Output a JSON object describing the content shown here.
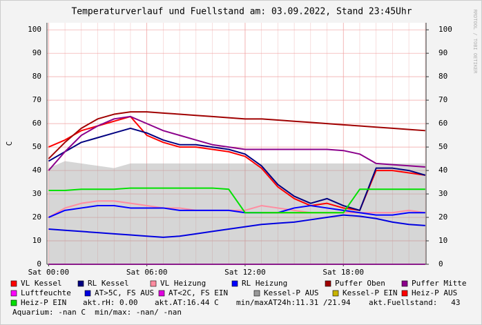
{
  "chart_data": {
    "type": "line",
    "title": "Temperaturverlauf und Fuellstand am: 03.09.2022, Stand 23:45Uhr",
    "y_label": "C",
    "side_label": "RRDTOOL / TOBI OETIKER",
    "x": [
      0,
      1,
      2,
      3,
      4,
      5,
      6,
      7,
      8,
      9,
      10,
      11,
      12,
      13,
      14,
      15,
      16,
      17,
      18,
      19,
      20,
      21,
      22,
      23
    ],
    "xlim": [
      -0.1,
      23.05
    ],
    "xticks": [
      {
        "value": 0,
        "label": "Sat 00:00"
      },
      {
        "value": 6,
        "label": "Sat 06:00"
      },
      {
        "value": 12,
        "label": "Sat 12:00"
      },
      {
        "value": 18,
        "label": "Sat 18:00"
      }
    ],
    "ylim": [
      0,
      103
    ],
    "yticks": [
      0,
      10,
      20,
      30,
      40,
      50,
      60,
      70,
      80,
      90,
      100
    ],
    "grid": true,
    "series": [
      {
        "name": "VL Kessel",
        "color": "#ff0000",
        "values": [
          50,
          53,
          57,
          59,
          61,
          63,
          55,
          52,
          50,
          50,
          49,
          48,
          46,
          41,
          33,
          28,
          25,
          26,
          24,
          23,
          40,
          40,
          39,
          38
        ]
      },
      {
        "name": "RL Kessel",
        "color": "#000080",
        "values": [
          44,
          48,
          52,
          54,
          56,
          58,
          56,
          53,
          51,
          51,
          50,
          49,
          47,
          42,
          34,
          29,
          26,
          28,
          25,
          23,
          41,
          41,
          40,
          38
        ]
      },
      {
        "name": "VL Heizung",
        "color": "#ff8ca0",
        "values": [
          20,
          24,
          26,
          27,
          27,
          26,
          25,
          24,
          24,
          23,
          23,
          23,
          23,
          25,
          24,
          23,
          22,
          22,
          22,
          22,
          22,
          22,
          23,
          22
        ]
      },
      {
        "name": "RL Heizung",
        "color": "#0000ff",
        "values": [
          20,
          23,
          24,
          25,
          25,
          24,
          24,
          24,
          23,
          23,
          23,
          23,
          22,
          22,
          22,
          24,
          25,
          24,
          23,
          22,
          21,
          21,
          22,
          22
        ]
      },
      {
        "name": "Puffer Oben",
        "color": "#a00000",
        "values": [
          45,
          52,
          58,
          62,
          64,
          65,
          65,
          64.5,
          64,
          63.5,
          63,
          62.5,
          62,
          62,
          61.5,
          61,
          60.5,
          60,
          59.5,
          59,
          58.5,
          58,
          57.5,
          57
        ]
      },
      {
        "name": "Puffer Mitte",
        "color": "#8b008b",
        "values": [
          40,
          48,
          55,
          59,
          62,
          63,
          60,
          57,
          55,
          53,
          51,
          50,
          49,
          49,
          49,
          49,
          49,
          49,
          48.5,
          47,
          43,
          42.5,
          42,
          41.5
        ]
      },
      {
        "name": "Luftfeuchte",
        "color": "#ff00ff",
        "values": [
          null,
          null,
          null,
          null,
          null,
          null,
          null,
          null,
          null,
          null,
          null,
          null,
          null,
          null,
          null,
          null,
          null,
          null,
          null,
          null,
          null,
          null,
          null,
          null
        ]
      },
      {
        "name": "AT>5C, FS AUS",
        "color": "#0000e0",
        "values": [
          15,
          14.5,
          14,
          13.5,
          13,
          12.5,
          12,
          11.5,
          12,
          13,
          14,
          15,
          16,
          17,
          17.5,
          18,
          19,
          20,
          21,
          20.5,
          19.5,
          18,
          17,
          16.5
        ]
      },
      {
        "name": "AT<2C, FS EIN",
        "color": "#e000e0",
        "values": [
          0,
          0,
          0,
          0,
          0,
          0,
          0,
          0,
          0,
          0,
          0,
          0,
          0,
          0,
          0,
          0,
          0,
          0,
          0,
          0,
          0,
          0,
          0,
          0
        ]
      },
      {
        "name": "Kessel-P AUS",
        "color": "#999999",
        "area": true,
        "values": [
          41,
          44,
          43,
          42,
          41,
          43,
          43,
          43,
          43,
          43,
          43,
          43,
          43,
          43,
          43,
          43,
          43,
          43,
          43,
          43,
          43,
          43,
          43,
          43
        ]
      },
      {
        "name": "Kessel-P EIN",
        "color": "#c8b400",
        "values": [
          null,
          null,
          null,
          null,
          null,
          null,
          null,
          null,
          null,
          null,
          null,
          null,
          null,
          22,
          22,
          22,
          22,
          22,
          22,
          null,
          null,
          null,
          null,
          null
        ]
      },
      {
        "name": "Heiz-P AUS",
        "color": "#ff0000",
        "values": [
          null,
          null,
          null,
          null,
          null,
          null,
          null,
          null,
          null,
          null,
          null,
          null,
          null,
          null,
          null,
          null,
          null,
          null,
          null,
          null,
          null,
          null,
          null,
          null
        ]
      },
      {
        "name": "Heiz-P EIN",
        "color": "#00e000",
        "values": [
          31.5,
          31.5,
          32,
          32,
          32,
          32.5,
          32.5,
          32.5,
          32.5,
          32.5,
          32.5,
          32,
          22,
          22,
          22,
          22,
          22,
          22,
          22,
          32,
          32,
          32,
          32,
          32
        ]
      }
    ],
    "notes": [
      "akt.rH: 0.00",
      "akt.AT:16.44 C",
      "min/maxAT24h:11.31 /21.94",
      "akt.Fuellstand:   43",
      "Aquarium: -nan C  min/max: -nan/ -nan"
    ]
  }
}
